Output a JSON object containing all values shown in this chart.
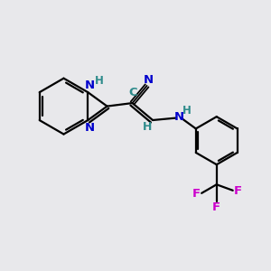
{
  "bg_color": "#e8e8eb",
  "bond_color": "#000000",
  "N_color": "#0000cc",
  "C_color": "#2e8b8b",
  "F_color": "#cc00cc",
  "H_color": "#2e8b8b",
  "bond_width": 1.6,
  "figsize": [
    3.0,
    3.0
  ],
  "dpi": 100,
  "xlim": [
    0,
    10
  ],
  "ylim": [
    0,
    10
  ]
}
